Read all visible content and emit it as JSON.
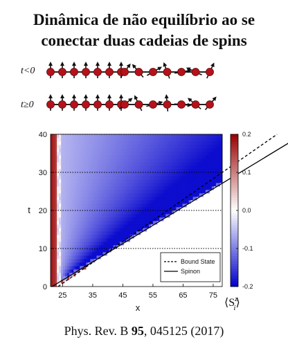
{
  "title": {
    "line1": "Dinâmica de não equilíbrio ao se",
    "line2": "conectar duas cadeias de spins"
  },
  "spin_chains": {
    "row_before": {
      "label": "t<0",
      "left_chain": "up-aligned",
      "right_chain": "disordered",
      "connected": false
    },
    "row_after": {
      "label": "t≥0",
      "left_chain": "up-aligned",
      "right_chain": "disordered",
      "connected": true
    },
    "spins_per_chain": 7
  },
  "chart_data": {
    "type": "heatmap",
    "xlabel": "x",
    "ylabel": "t",
    "x_ticks": [
      "25",
      "35",
      "45",
      "55",
      "65",
      "75"
    ],
    "y_ticks": [
      "0",
      "10",
      "20",
      "30",
      "40"
    ],
    "xlim": [
      21,
      78
    ],
    "ylim": [
      0,
      40
    ],
    "colorbar": {
      "label": "⟨S",
      "label_sup": "z",
      "label_sub": "i",
      "label_end": "⟩",
      "ticks": [
        "0.2",
        "0.1",
        "0.0",
        "-0.1",
        "-0.2"
      ],
      "range": [
        -0.2,
        0.2
      ],
      "colors": {
        "min": "#0000cc",
        "mid": "#ffffff",
        "max": "#990000"
      }
    },
    "lines": [
      {
        "name": "Bound State",
        "style": "dashed",
        "x0": 23.5,
        "t0": 0,
        "slope": 0.55
      },
      {
        "name": "Spinon",
        "style": "solid",
        "x0": 21.5,
        "t0": 0,
        "slope": 0.48
      }
    ],
    "grid": "dotted horizontal lines at t = 10, 20, 30, 40",
    "legend_position": "bottom-right"
  },
  "citation": {
    "prefix": "Phys. Rev. B ",
    "volume": "95",
    "suffix": ", 045125 (2017)"
  }
}
